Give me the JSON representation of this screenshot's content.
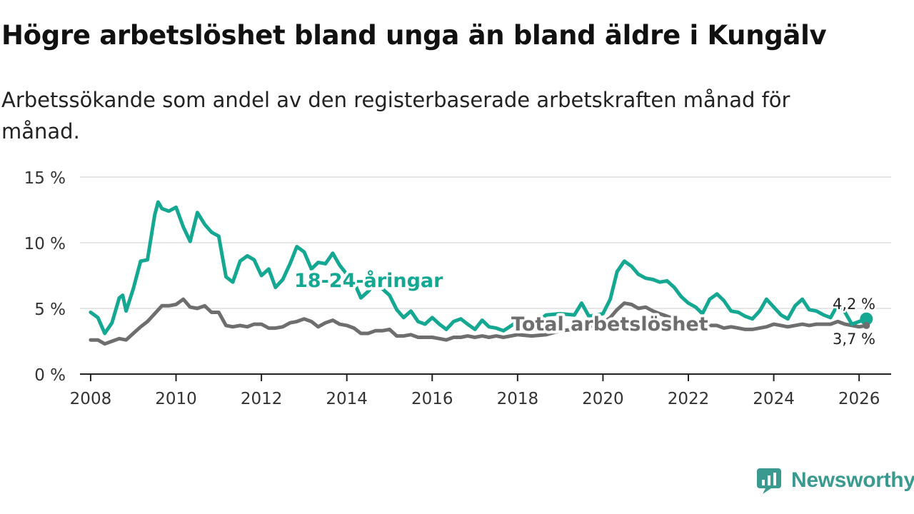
{
  "header": {
    "title": "Högre arbetslöshet bland unga än bland äldre i Kungälv",
    "subtitle": "Arbetssökande som andel av den registerbaserade arbetskraften månad för månad."
  },
  "brand": {
    "name": "Newsworthy"
  },
  "colors": {
    "youth": "#14a893",
    "total": "#6e6e6e",
    "grid": "#dddddd",
    "axis": "#222222",
    "text": "#333333"
  },
  "chart_data": {
    "type": "line",
    "title": "Högre arbetslöshet bland unga än bland äldre i Kungälv",
    "subtitle": "Arbetssökande som andel av den registerbaserade arbetskraften månad för månad.",
    "xlabel": "",
    "ylabel": "",
    "xlim": [
      2007.75,
      2026.75
    ],
    "ylim": [
      0,
      15
    ],
    "grid": true,
    "x_ticks": [
      {
        "value": 2008,
        "label": "2008"
      },
      {
        "value": 2010,
        "label": "2010"
      },
      {
        "value": 2012,
        "label": "2012"
      },
      {
        "value": 2014,
        "label": "2014"
      },
      {
        "value": 2016,
        "label": "2016"
      },
      {
        "value": 2018,
        "label": "2018"
      },
      {
        "value": 2020,
        "label": "2020"
      },
      {
        "value": 2022,
        "label": "2022"
      },
      {
        "value": 2024,
        "label": "2024"
      },
      {
        "value": 2026,
        "label": "2026"
      }
    ],
    "y_ticks": [
      {
        "value": 0,
        "label": "0 %"
      },
      {
        "value": 5,
        "label": "5 %"
      },
      {
        "value": 10,
        "label": "10 %"
      },
      {
        "value": 15,
        "label": "15 %"
      }
    ],
    "series": [
      {
        "name": "18-24-åringar",
        "label": "18-24-åringar",
        "color": "#14a893",
        "end_label": "4,2 %",
        "points": [
          [
            2008.0,
            4.7
          ],
          [
            2008.17,
            4.3
          ],
          [
            2008.33,
            3.1
          ],
          [
            2008.5,
            3.9
          ],
          [
            2008.67,
            5.8
          ],
          [
            2008.75,
            6.0
          ],
          [
            2008.83,
            4.8
          ],
          [
            2009.0,
            6.5
          ],
          [
            2009.17,
            8.6
          ],
          [
            2009.33,
            8.7
          ],
          [
            2009.5,
            12.1
          ],
          [
            2009.58,
            13.1
          ],
          [
            2009.67,
            12.6
          ],
          [
            2009.83,
            12.4
          ],
          [
            2010.0,
            12.7
          ],
          [
            2010.17,
            11.2
          ],
          [
            2010.33,
            10.1
          ],
          [
            2010.5,
            12.3
          ],
          [
            2010.67,
            11.4
          ],
          [
            2010.83,
            10.8
          ],
          [
            2011.0,
            10.5
          ],
          [
            2011.17,
            7.4
          ],
          [
            2011.33,
            7.0
          ],
          [
            2011.5,
            8.6
          ],
          [
            2011.67,
            9.0
          ],
          [
            2011.83,
            8.7
          ],
          [
            2012.0,
            7.5
          ],
          [
            2012.17,
            8.0
          ],
          [
            2012.33,
            6.6
          ],
          [
            2012.5,
            7.2
          ],
          [
            2012.67,
            8.4
          ],
          [
            2012.83,
            9.7
          ],
          [
            2013.0,
            9.3
          ],
          [
            2013.17,
            8.0
          ],
          [
            2013.33,
            8.5
          ],
          [
            2013.5,
            8.4
          ],
          [
            2013.67,
            9.2
          ],
          [
            2013.83,
            8.3
          ],
          [
            2014.0,
            7.6
          ],
          [
            2014.17,
            7.0
          ],
          [
            2014.33,
            5.8
          ],
          [
            2014.5,
            6.3
          ],
          [
            2014.67,
            6.9
          ],
          [
            2014.83,
            6.5
          ],
          [
            2015.0,
            6.0
          ],
          [
            2015.17,
            4.9
          ],
          [
            2015.33,
            4.3
          ],
          [
            2015.5,
            4.8
          ],
          [
            2015.67,
            4.0
          ],
          [
            2015.83,
            3.8
          ],
          [
            2016.0,
            4.3
          ],
          [
            2016.17,
            3.8
          ],
          [
            2016.33,
            3.4
          ],
          [
            2016.5,
            4.0
          ],
          [
            2016.67,
            4.2
          ],
          [
            2016.83,
            3.8
          ],
          [
            2017.0,
            3.4
          ],
          [
            2017.17,
            4.1
          ],
          [
            2017.33,
            3.6
          ],
          [
            2017.5,
            3.5
          ],
          [
            2017.67,
            3.3
          ],
          [
            2018.0,
            4.0
          ],
          [
            2018.33,
            3.7
          ],
          [
            2018.67,
            4.5
          ],
          [
            2019.0,
            4.6
          ],
          [
            2019.33,
            4.5
          ],
          [
            2019.5,
            5.4
          ],
          [
            2019.67,
            4.4
          ],
          [
            2020.0,
            4.6
          ],
          [
            2020.17,
            5.7
          ],
          [
            2020.33,
            7.8
          ],
          [
            2020.5,
            8.6
          ],
          [
            2020.67,
            8.2
          ],
          [
            2020.83,
            7.6
          ],
          [
            2021.0,
            7.3
          ],
          [
            2021.17,
            7.2
          ],
          [
            2021.33,
            7.0
          ],
          [
            2021.5,
            7.1
          ],
          [
            2021.67,
            6.6
          ],
          [
            2021.83,
            5.9
          ],
          [
            2022.0,
            5.4
          ],
          [
            2022.17,
            5.1
          ],
          [
            2022.33,
            4.6
          ],
          [
            2022.5,
            5.7
          ],
          [
            2022.67,
            6.1
          ],
          [
            2022.83,
            5.6
          ],
          [
            2023.0,
            4.8
          ],
          [
            2023.17,
            4.7
          ],
          [
            2023.33,
            4.4
          ],
          [
            2023.5,
            4.2
          ],
          [
            2023.67,
            4.8
          ],
          [
            2023.83,
            5.7
          ],
          [
            2024.0,
            5.1
          ],
          [
            2024.17,
            4.5
          ],
          [
            2024.33,
            4.2
          ],
          [
            2024.5,
            5.2
          ],
          [
            2024.67,
            5.7
          ],
          [
            2024.83,
            4.9
          ],
          [
            2025.0,
            4.8
          ],
          [
            2025.17,
            4.5
          ],
          [
            2025.33,
            4.3
          ],
          [
            2025.5,
            5.3
          ],
          [
            2025.67,
            4.7
          ],
          [
            2025.83,
            3.8
          ],
          [
            2026.0,
            4.0
          ],
          [
            2026.17,
            4.2
          ]
        ]
      },
      {
        "name": "Total arbetslöshet",
        "label": "Total arbetslöshet",
        "color": "#6e6e6e",
        "end_label": "3,7 %",
        "points": [
          [
            2008.0,
            2.6
          ],
          [
            2008.17,
            2.6
          ],
          [
            2008.33,
            2.3
          ],
          [
            2008.5,
            2.5
          ],
          [
            2008.67,
            2.7
          ],
          [
            2008.83,
            2.6
          ],
          [
            2009.0,
            3.1
          ],
          [
            2009.17,
            3.6
          ],
          [
            2009.33,
            4.0
          ],
          [
            2009.5,
            4.6
          ],
          [
            2009.67,
            5.2
          ],
          [
            2009.83,
            5.2
          ],
          [
            2010.0,
            5.3
          ],
          [
            2010.17,
            5.7
          ],
          [
            2010.33,
            5.1
          ],
          [
            2010.5,
            5.0
          ],
          [
            2010.67,
            5.2
          ],
          [
            2010.83,
            4.7
          ],
          [
            2011.0,
            4.7
          ],
          [
            2011.17,
            3.7
          ],
          [
            2011.33,
            3.6
          ],
          [
            2011.5,
            3.7
          ],
          [
            2011.67,
            3.6
          ],
          [
            2011.83,
            3.8
          ],
          [
            2012.0,
            3.8
          ],
          [
            2012.17,
            3.5
          ],
          [
            2012.33,
            3.5
          ],
          [
            2012.5,
            3.6
          ],
          [
            2012.67,
            3.9
          ],
          [
            2012.83,
            4.0
          ],
          [
            2013.0,
            4.2
          ],
          [
            2013.17,
            4.0
          ],
          [
            2013.33,
            3.6
          ],
          [
            2013.5,
            3.9
          ],
          [
            2013.67,
            4.1
          ],
          [
            2013.83,
            3.8
          ],
          [
            2014.0,
            3.7
          ],
          [
            2014.17,
            3.5
          ],
          [
            2014.33,
            3.1
          ],
          [
            2014.5,
            3.1
          ],
          [
            2014.67,
            3.3
          ],
          [
            2014.83,
            3.3
          ],
          [
            2015.0,
            3.4
          ],
          [
            2015.17,
            2.9
          ],
          [
            2015.33,
            2.9
          ],
          [
            2015.5,
            3.0
          ],
          [
            2015.67,
            2.8
          ],
          [
            2015.83,
            2.8
          ],
          [
            2016.0,
            2.8
          ],
          [
            2016.17,
            2.7
          ],
          [
            2016.33,
            2.6
          ],
          [
            2016.5,
            2.8
          ],
          [
            2016.67,
            2.8
          ],
          [
            2016.83,
            2.9
          ],
          [
            2017.0,
            2.8
          ],
          [
            2017.17,
            2.9
          ],
          [
            2017.33,
            2.8
          ],
          [
            2017.5,
            2.9
          ],
          [
            2017.67,
            2.8
          ],
          [
            2018.0,
            3.0
          ],
          [
            2018.33,
            2.9
          ],
          [
            2018.67,
            3.0
          ],
          [
            2019.0,
            3.3
          ],
          [
            2019.33,
            3.4
          ],
          [
            2019.67,
            3.6
          ],
          [
            2020.0,
            3.9
          ],
          [
            2020.17,
            4.3
          ],
          [
            2020.33,
            4.9
          ],
          [
            2020.5,
            5.4
          ],
          [
            2020.67,
            5.3
          ],
          [
            2020.83,
            5.0
          ],
          [
            2021.0,
            5.1
          ],
          [
            2021.17,
            4.8
          ],
          [
            2021.33,
            4.6
          ],
          [
            2021.5,
            4.4
          ],
          [
            2021.67,
            4.2
          ],
          [
            2021.83,
            4.0
          ],
          [
            2022.0,
            3.8
          ],
          [
            2022.17,
            3.7
          ],
          [
            2022.33,
            3.6
          ],
          [
            2022.5,
            3.7
          ],
          [
            2022.67,
            3.7
          ],
          [
            2022.83,
            3.5
          ],
          [
            2023.0,
            3.6
          ],
          [
            2023.17,
            3.5
          ],
          [
            2023.33,
            3.4
          ],
          [
            2023.5,
            3.4
          ],
          [
            2023.67,
            3.5
          ],
          [
            2023.83,
            3.6
          ],
          [
            2024.0,
            3.8
          ],
          [
            2024.17,
            3.7
          ],
          [
            2024.33,
            3.6
          ],
          [
            2024.5,
            3.7
          ],
          [
            2024.67,
            3.8
          ],
          [
            2024.83,
            3.7
          ],
          [
            2025.0,
            3.8
          ],
          [
            2025.17,
            3.8
          ],
          [
            2025.33,
            3.8
          ],
          [
            2025.5,
            4.0
          ],
          [
            2025.67,
            3.8
          ],
          [
            2025.83,
            3.7
          ],
          [
            2026.0,
            3.6
          ],
          [
            2026.17,
            3.7
          ]
        ]
      }
    ]
  }
}
